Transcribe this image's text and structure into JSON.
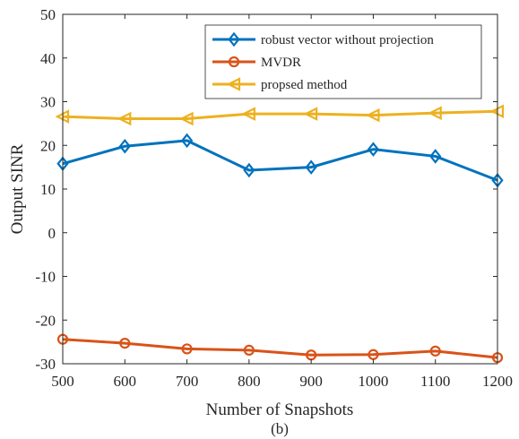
{
  "chart_data": {
    "type": "line",
    "title": "",
    "xlabel": "Number of Snapshots",
    "ylabel": "Output SINR",
    "caption": "(b)",
    "xlim": [
      500,
      1200
    ],
    "ylim": [
      -30,
      50
    ],
    "x": [
      500,
      600,
      700,
      800,
      900,
      1000,
      1100,
      1200
    ],
    "xticks": [
      "500",
      "600",
      "700",
      "800",
      "900",
      "1000",
      "1100",
      "1200"
    ],
    "yticks": [
      "-30",
      "-20",
      "-10",
      "0",
      "10",
      "20",
      "30",
      "40",
      "50"
    ],
    "grid": false,
    "legend_position": "top-right",
    "series": [
      {
        "name": "robust vector without projection",
        "marker": "diamond",
        "color": "#0072BD",
        "values": [
          15.8,
          19.8,
          21.1,
          14.3,
          15.0,
          19.1,
          17.5,
          12.0
        ]
      },
      {
        "name": "MVDR",
        "marker": "circle",
        "color": "#D95319",
        "values": [
          -24.4,
          -25.3,
          -26.6,
          -26.9,
          -28.0,
          -27.9,
          -27.1,
          -28.6
        ]
      },
      {
        "name": "propsed method",
        "marker": "triangle-left",
        "color": "#EDB120",
        "values": [
          26.6,
          26.1,
          26.1,
          27.2,
          27.2,
          26.9,
          27.4,
          27.8
        ]
      }
    ]
  }
}
